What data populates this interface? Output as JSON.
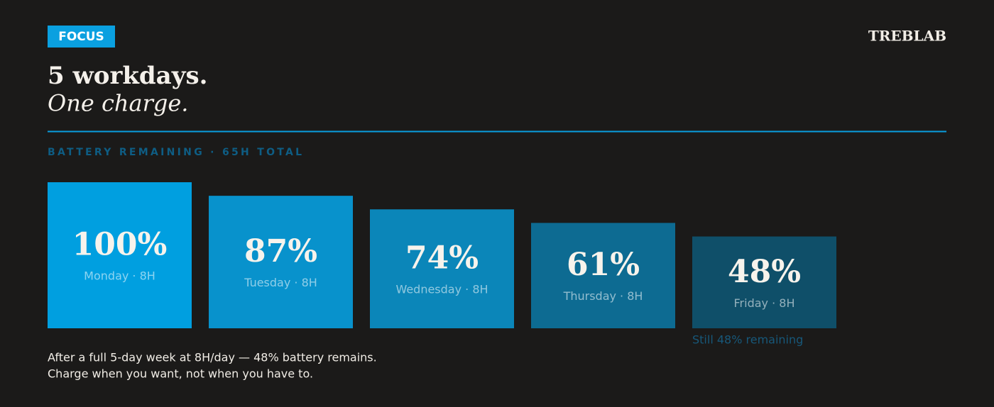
{
  "badge": "FOCUS",
  "brand": "TREBLAB",
  "chart_data": {
    "type": "bar",
    "title": "5 workdays.",
    "subtitle": "One charge.",
    "axis_label": "BATTERY REMAINING · 65H TOTAL",
    "categories": [
      "Monday · 8H",
      "Tuesday · 8H",
      "Wednesday · 8H",
      "Thursday · 8H",
      "Friday · 8H"
    ],
    "values": [
      100,
      87,
      74,
      61,
      48
    ],
    "value_labels": [
      "100%",
      "87%",
      "74%",
      "61%",
      "48%"
    ],
    "colors": [
      "#009fe0",
      "#0892cc",
      "#0b86b9",
      "#0d6b92",
      "#0f4f69"
    ],
    "ylim": [
      -40,
      100
    ],
    "annotation": "Still 48% remaining",
    "notes": [
      "After a full 5-day week at 8H/day — 48% battery remains.",
      "Charge when you want, not when you have to."
    ]
  }
}
